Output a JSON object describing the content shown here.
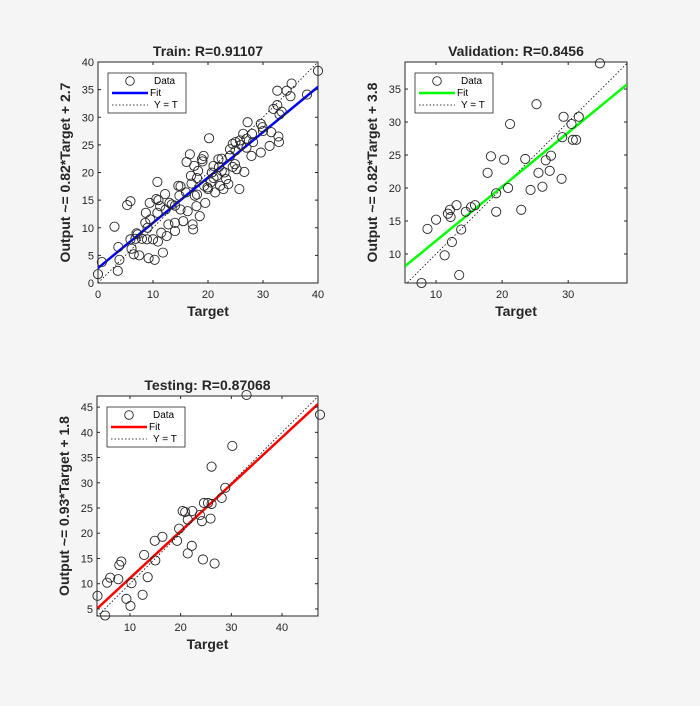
{
  "chart_data": [
    {
      "type": "scatter",
      "title": "Train: R=0.91107",
      "xlabel": "Target",
      "ylabel": "Output ~= 0.82*Target + 2.7",
      "xlim": [
        0,
        40
      ],
      "ylim": [
        0,
        40
      ],
      "xticks": [
        0,
        10,
        20,
        30,
        40
      ],
      "yticks": [
        0,
        5,
        10,
        15,
        20,
        25,
        30,
        35,
        40
      ],
      "fit": {
        "slope": 0.82,
        "intercept": 2.7,
        "color": "#0000ff"
      },
      "legend": {
        "placement": "top-left",
        "entries": [
          "Data",
          "Fit",
          "Y = T"
        ]
      },
      "grid": false,
      "points": [
        [
          0,
          1.6
        ],
        [
          0.7,
          3.8
        ],
        [
          3.0,
          10.2
        ],
        [
          3.6,
          2.2
        ],
        [
          3.7,
          6.5
        ],
        [
          3.9,
          4.2
        ],
        [
          5.3,
          14.1
        ],
        [
          5.9,
          14.8
        ],
        [
          5.9,
          7.9
        ],
        [
          6.1,
          6.2
        ],
        [
          6.5,
          5.2
        ],
        [
          6.8,
          8
        ],
        [
          7.2,
          8.8
        ],
        [
          7.5,
          5.0
        ],
        [
          8.6,
          10.9
        ],
        [
          8.7,
          12.7
        ],
        [
          8.9,
          7.9
        ],
        [
          9.2,
          4.5
        ],
        [
          9.4,
          14.5
        ],
        [
          9.5,
          11.5
        ],
        [
          10,
          7.9
        ],
        [
          10.3,
          4.2
        ],
        [
          10.6,
          15.2
        ],
        [
          10.8,
          18.3
        ],
        [
          10.8,
          12.7
        ],
        [
          10.9,
          7.5
        ],
        [
          11.3,
          13.9
        ],
        [
          11.5,
          9.1
        ],
        [
          11.8,
          5.5
        ],
        [
          12.2,
          16.1
        ],
        [
          12.3,
          13.3
        ],
        [
          12.5,
          8.5
        ],
        [
          12.8,
          10.6
        ],
        [
          13.4,
          14.2
        ],
        [
          14.0,
          10.9
        ],
        [
          14.0,
          9.4
        ],
        [
          14.6,
          17.6
        ],
        [
          14.8,
          15.8
        ],
        [
          15,
          13.3
        ],
        [
          15.5,
          11.2
        ],
        [
          16,
          16.4
        ],
        [
          16.1,
          21.9
        ],
        [
          16.3,
          13
        ],
        [
          16.7,
          23.3
        ],
        [
          16.9,
          19.4
        ],
        [
          17.2,
          10.6
        ],
        [
          17.3,
          9.7
        ],
        [
          17.5,
          21.2
        ],
        [
          17.6,
          15.8
        ],
        [
          17.9,
          13.9
        ],
        [
          18.2,
          20.3
        ],
        [
          18.5,
          12.1
        ],
        [
          18.9,
          22.4
        ],
        [
          19.2,
          23
        ],
        [
          19.3,
          17.6
        ],
        [
          19.5,
          14.5
        ],
        [
          19.9,
          17.3
        ],
        [
          20.2,
          26.2
        ],
        [
          20.5,
          18.2
        ],
        [
          20.7,
          20
        ],
        [
          21,
          21.2
        ],
        [
          21.3,
          16.4
        ],
        [
          21.6,
          19.4
        ],
        [
          21.9,
          22.4
        ],
        [
          22.2,
          17.6
        ],
        [
          22.5,
          20.3
        ],
        [
          22.8,
          17
        ],
        [
          23.3,
          18.8
        ],
        [
          23.7,
          17.9
        ],
        [
          24,
          24.2
        ],
        [
          24.5,
          25.2
        ],
        [
          24.9,
          21.5
        ],
        [
          25.2,
          20.6
        ],
        [
          25.7,
          17
        ],
        [
          25.8,
          25.8
        ],
        [
          26.4,
          27
        ],
        [
          26.6,
          20.1
        ],
        [
          27,
          26.1
        ],
        [
          27.2,
          29.1
        ],
        [
          27.9,
          23
        ],
        [
          28.2,
          25.5
        ],
        [
          29.6,
          28.8
        ],
        [
          29.6,
          23.6
        ],
        [
          29.9,
          28.2
        ],
        [
          31.2,
          24.8
        ],
        [
          31.5,
          27.3
        ],
        [
          31.9,
          31.5
        ],
        [
          32.6,
          32.2
        ],
        [
          32.6,
          34.8
        ],
        [
          32.8,
          26.5
        ],
        [
          32.9,
          25.5
        ],
        [
          33.4,
          31
        ],
        [
          34.3,
          34.8
        ],
        [
          35,
          33.8
        ],
        [
          35.2,
          36.1
        ],
        [
          38,
          34.1
        ],
        [
          40,
          38.4
        ],
        [
          21,
          19
        ],
        [
          22,
          21
        ],
        [
          19,
          22
        ],
        [
          23,
          20
        ],
        [
          24,
          23
        ],
        [
          25,
          24
        ],
        [
          26,
          25
        ],
        [
          17,
          18
        ],
        [
          18,
          16
        ],
        [
          15,
          17.5
        ],
        [
          13,
          14.5
        ],
        [
          11,
          15
        ],
        [
          20,
          17
        ],
        [
          22.5,
          22.5
        ],
        [
          24.5,
          21
        ],
        [
          18,
          19
        ],
        [
          14,
          14
        ],
        [
          9,
          10
        ],
        [
          7,
          9
        ],
        [
          8,
          8
        ],
        [
          30,
          27.5
        ],
        [
          28,
          27
        ],
        [
          33,
          30.5
        ],
        [
          25,
          25.5
        ],
        [
          27,
          24.5
        ]
      ]
    },
    {
      "type": "scatter",
      "title": "Validation: R=0.8456",
      "xlabel": "Target",
      "ylabel": "Output ~= 0.82*Target + 3.8",
      "xlim": [
        5.3,
        38.9
      ],
      "ylim": [
        5.6,
        39.1
      ],
      "xticks": [
        10,
        20,
        30
      ],
      "yticks": [
        10,
        15,
        20,
        25,
        30,
        35
      ],
      "fit": {
        "slope": 0.82,
        "intercept": 3.8,
        "color": "#00ff00"
      },
      "legend": {
        "placement": "top-left",
        "entries": [
          "Data",
          "Fit",
          "Y = T"
        ]
      },
      "grid": false,
      "points": [
        [
          34.8,
          38.9
        ],
        [
          25.2,
          32.7
        ],
        [
          21.2,
          29.7
        ],
        [
          29.3,
          30.8
        ],
        [
          30.5,
          29.7
        ],
        [
          31.6,
          30.8
        ],
        [
          29.1,
          27.7
        ],
        [
          30.7,
          27.3
        ],
        [
          31.2,
          27.3
        ],
        [
          18.3,
          24.8
        ],
        [
          20.3,
          24.3
        ],
        [
          23.5,
          24.4
        ],
        [
          26.6,
          24.2
        ],
        [
          27.4,
          24.9
        ],
        [
          17.8,
          22.3
        ],
        [
          25.5,
          22.3
        ],
        [
          27.2,
          22.6
        ],
        [
          29,
          21.4
        ],
        [
          20.9,
          20
        ],
        [
          26.1,
          20.2
        ],
        [
          24.3,
          19.7
        ],
        [
          19.1,
          19.2
        ],
        [
          19.1,
          16.4
        ],
        [
          22.9,
          16.7
        ],
        [
          13.1,
          17.4
        ],
        [
          12.1,
          16.7
        ],
        [
          11.8,
          16.1
        ],
        [
          12.2,
          15.6
        ],
        [
          14.5,
          16.4
        ],
        [
          15.3,
          17.1
        ],
        [
          15.9,
          17.4
        ],
        [
          10,
          15.2
        ],
        [
          8.7,
          13.8
        ],
        [
          13.8,
          13.7
        ],
        [
          12.4,
          11.8
        ],
        [
          11.3,
          9.8
        ],
        [
          13.5,
          6.8
        ],
        [
          7.8,
          5.6
        ]
      ]
    },
    {
      "type": "scatter",
      "title": "Testing: R=0.87068",
      "xlabel": "Target",
      "ylabel": "Output ~= 0.93*Target + 1.8",
      "xlim": [
        3.5,
        47.1
      ],
      "ylim": [
        3.6,
        47.2
      ],
      "xticks": [
        10,
        20,
        30,
        40
      ],
      "yticks": [
        5,
        10,
        15,
        20,
        25,
        30,
        35,
        40,
        45
      ],
      "fit": {
        "slope": 0.93,
        "intercept": 1.8,
        "color": "#ff0000"
      },
      "legend": {
        "placement": "top-left",
        "entries": [
          "Data",
          "Fit",
          "Y = T"
        ]
      },
      "grid": false,
      "points": [
        [
          33,
          47.4
        ],
        [
          47.5,
          43.5
        ],
        [
          30.2,
          37.3
        ],
        [
          26.1,
          33.2
        ],
        [
          28.8,
          29
        ],
        [
          28.1,
          27
        ],
        [
          24.6,
          26
        ],
        [
          25.4,
          26
        ],
        [
          26.1,
          25.8
        ],
        [
          20.4,
          24.4
        ],
        [
          20.9,
          24.2
        ],
        [
          22.3,
          24.4
        ],
        [
          23.8,
          23.6
        ],
        [
          21.4,
          22.7
        ],
        [
          25.9,
          22.9
        ],
        [
          24.2,
          22.4
        ],
        [
          19.7,
          20.9
        ],
        [
          16.4,
          19.3
        ],
        [
          14.9,
          18.5
        ],
        [
          19.3,
          18.5
        ],
        [
          22.2,
          17.5
        ],
        [
          21.4,
          16
        ],
        [
          12.8,
          15.7
        ],
        [
          24.4,
          14.8
        ],
        [
          15,
          14.6
        ],
        [
          26.7,
          14
        ],
        [
          8.3,
          14.4
        ],
        [
          7.9,
          13.7
        ],
        [
          6.1,
          11.2
        ],
        [
          7.7,
          10.9
        ],
        [
          5.5,
          10.2
        ],
        [
          13.5,
          11.3
        ],
        [
          10.3,
          10.1
        ],
        [
          3.6,
          7.6
        ],
        [
          9.3,
          7
        ],
        [
          12.5,
          7.8
        ],
        [
          10.1,
          5.6
        ],
        [
          5.1,
          3.7
        ]
      ]
    }
  ]
}
